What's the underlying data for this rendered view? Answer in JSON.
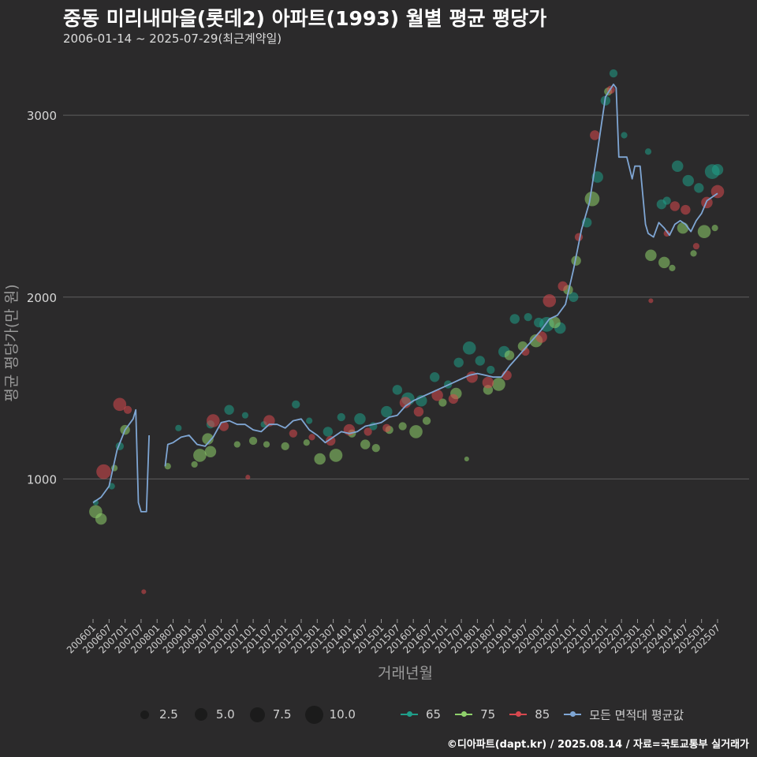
{
  "title": "중동 미리내마을(롯데2) 아파트(1993) 월별 평균 평당가",
  "subtitle": "2006-01-14 ~ 2025-07-29(최근계약일)",
  "caption": "©디아파트(dapt.kr) / 2025.08.14 / 자료=국토교통부 실거래가",
  "colors": {
    "background": "#2b2a2b",
    "grid": "#5e5e5e",
    "area_65": "#1f9e89",
    "area_75": "#8fd16b",
    "area_85": "#d8484f",
    "average_line": "#7fa6d4"
  },
  "chart_data": {
    "type": "scatter",
    "title": "",
    "xlabel": "거래년월",
    "ylabel": "평균 평당가(만 원)",
    "ylim": [
      230,
      3330
    ],
    "yticks": [
      1000,
      2000,
      3000
    ],
    "x_tick_labels": [
      "200601",
      "200607",
      "200701",
      "200707",
      "200801",
      "200807",
      "200901",
      "200907",
      "201001",
      "201007",
      "201101",
      "201107",
      "201201",
      "201207",
      "201301",
      "201307",
      "201401",
      "201407",
      "201501",
      "201507",
      "201601",
      "201607",
      "201701",
      "201707",
      "201801",
      "201807",
      "201901",
      "201907",
      "202001",
      "202007",
      "202101",
      "202107",
      "202201",
      "202207",
      "202301",
      "202307",
      "202401",
      "202407",
      "202501",
      "202507"
    ],
    "grid": true,
    "size_legend": {
      "title": "",
      "values": [
        "2.5",
        "5.0",
        "7.5",
        "10.0"
      ]
    },
    "color_legend": [
      "65",
      "75",
      "85",
      "모든 면적대 평균값"
    ],
    "legend_position": "bottom",
    "average_line": {
      "name": "모든 면적대 평균값",
      "points": [
        [
          "2006-01",
          870
        ],
        [
          "2006-04",
          900
        ],
        [
          "2006-07",
          960
        ],
        [
          "2006-10",
          1160
        ],
        [
          "2007-01",
          1270
        ],
        [
          "2007-04",
          1330
        ],
        [
          "2007-05",
          1380
        ],
        [
          "2007-06",
          870
        ],
        [
          "2007-07",
          820
        ],
        [
          "2007-08",
          820
        ],
        [
          "2007-09",
          820
        ],
        [
          "2007-10",
          1240
        ],
        [
          "2008-01",
          null
        ],
        [
          "2008-04",
          1070
        ],
        [
          "2008-05",
          1190
        ],
        [
          "2008-07",
          1200
        ],
        [
          "2008-10",
          1230
        ],
        [
          "2009-01",
          1240
        ],
        [
          "2009-04",
          1190
        ],
        [
          "2009-07",
          1180
        ],
        [
          "2009-10",
          1230
        ],
        [
          "2010-01",
          1310
        ],
        [
          "2010-04",
          1320
        ],
        [
          "2010-07",
          1300
        ],
        [
          "2010-10",
          1300
        ],
        [
          "2011-01",
          1270
        ],
        [
          "2011-04",
          1260
        ],
        [
          "2011-07",
          1300
        ],
        [
          "2011-10",
          1300
        ],
        [
          "2012-01",
          1280
        ],
        [
          "2012-04",
          1320
        ],
        [
          "2012-07",
          1330
        ],
        [
          "2012-10",
          1270
        ],
        [
          "2013-01",
          1240
        ],
        [
          "2013-04",
          1200
        ],
        [
          "2013-07",
          1230
        ],
        [
          "2013-10",
          1260
        ],
        [
          "2014-01",
          1250
        ],
        [
          "2014-04",
          1260
        ],
        [
          "2014-07",
          1290
        ],
        [
          "2014-10",
          1300
        ],
        [
          "2015-01",
          1310
        ],
        [
          "2015-04",
          1340
        ],
        [
          "2015-07",
          1350
        ],
        [
          "2015-10",
          1400
        ],
        [
          "2016-01",
          1430
        ],
        [
          "2016-04",
          1450
        ],
        [
          "2016-07",
          1470
        ],
        [
          "2016-10",
          1490
        ],
        [
          "2017-01",
          1510
        ],
        [
          "2017-04",
          1530
        ],
        [
          "2017-07",
          1550
        ],
        [
          "2017-10",
          1570
        ],
        [
          "2018-01",
          1580
        ],
        [
          "2018-04",
          1570
        ],
        [
          "2018-07",
          1560
        ],
        [
          "2018-10",
          1560
        ],
        [
          "2019-01",
          1620
        ],
        [
          "2019-04",
          1670
        ],
        [
          "2019-07",
          1720
        ],
        [
          "2019-10",
          1770
        ],
        [
          "2020-01",
          1820
        ],
        [
          "2020-04",
          1880
        ],
        [
          "2020-07",
          1900
        ],
        [
          "2020-10",
          1960
        ],
        [
          "2021-01",
          2150
        ],
        [
          "2021-04",
          2370
        ],
        [
          "2021-07",
          2520
        ],
        [
          "2021-10",
          2800
        ],
        [
          "2022-01",
          3100
        ],
        [
          "2022-04",
          3170
        ],
        [
          "2022-05",
          3150
        ],
        [
          "2022-06",
          2770
        ],
        [
          "2022-07",
          2770
        ],
        [
          "2022-09",
          2770
        ],
        [
          "2022-11",
          2650
        ],
        [
          "2022-12",
          2720
        ],
        [
          "2023-02",
          2720
        ],
        [
          "2023-04",
          2400
        ],
        [
          "2023-05",
          2350
        ],
        [
          "2023-07",
          2330
        ],
        [
          "2023-09",
          2410
        ],
        [
          "2023-11",
          2380
        ],
        [
          "2024-01",
          2340
        ],
        [
          "2024-03",
          2400
        ],
        [
          "2024-05",
          2420
        ],
        [
          "2024-07",
          2400
        ],
        [
          "2024-09",
          2360
        ],
        [
          "2024-11",
          2420
        ],
        [
          "2025-01",
          2460
        ],
        [
          "2025-03",
          2530
        ],
        [
          "2025-05",
          2550
        ],
        [
          "2025-07",
          2570
        ]
      ]
    },
    "series": [
      {
        "name": "65",
        "points": [
          [
            "2006-02",
            870,
            1.5
          ],
          [
            "2006-08",
            960,
            2
          ],
          [
            "2006-11",
            1180,
            3
          ],
          [
            "2008-09",
            1280,
            2
          ],
          [
            "2009-09",
            1300,
            3
          ],
          [
            "2010-04",
            1380,
            4
          ],
          [
            "2010-10",
            1350,
            2
          ],
          [
            "2011-05",
            1300,
            2
          ],
          [
            "2012-05",
            1410,
            3
          ],
          [
            "2012-10",
            1320,
            2
          ],
          [
            "2013-05",
            1260,
            4
          ],
          [
            "2013-10",
            1340,
            3
          ],
          [
            "2014-05",
            1330,
            5
          ],
          [
            "2014-10",
            1290,
            3
          ],
          [
            "2015-03",
            1370,
            5
          ],
          [
            "2015-07",
            1490,
            4
          ],
          [
            "2015-11",
            1440,
            6
          ],
          [
            "2016-04",
            1430,
            5
          ],
          [
            "2016-09",
            1560,
            4
          ],
          [
            "2017-02",
            1520,
            3
          ],
          [
            "2017-06",
            1640,
            4
          ],
          [
            "2017-10",
            1720,
            6
          ],
          [
            "2018-02",
            1650,
            4
          ],
          [
            "2018-06",
            1600,
            3
          ],
          [
            "2018-11",
            1700,
            5
          ],
          [
            "2019-03",
            1880,
            4
          ],
          [
            "2019-08",
            1890,
            3
          ],
          [
            "2019-12",
            1860,
            4
          ],
          [
            "2020-03",
            1850,
            7
          ],
          [
            "2020-08",
            1830,
            5
          ],
          [
            "2021-01",
            2000,
            4
          ],
          [
            "2021-06",
            2410,
            4
          ],
          [
            "2021-10",
            2660,
            5
          ],
          [
            "2022-01",
            3080,
            4
          ],
          [
            "2022-04",
            3230,
            3
          ],
          [
            "2022-08",
            2890,
            2
          ],
          [
            "2023-05",
            2800,
            2
          ],
          [
            "2023-10",
            2510,
            4
          ],
          [
            "2023-12",
            2530,
            3
          ],
          [
            "2024-04",
            2720,
            5
          ],
          [
            "2024-08",
            2640,
            5
          ],
          [
            "2024-12",
            2600,
            4
          ],
          [
            "2025-05",
            2690,
            7
          ],
          [
            "2025-07",
            2700,
            5
          ]
        ]
      },
      {
        "name": "75",
        "points": [
          [
            "2006-02",
            820,
            6
          ],
          [
            "2006-04",
            780,
            5
          ],
          [
            "2006-09",
            1060,
            2
          ],
          [
            "2007-01",
            1270,
            4
          ],
          [
            "2008-05",
            1070,
            2
          ],
          [
            "2009-03",
            1080,
            2
          ],
          [
            "2009-05",
            1130,
            6
          ],
          [
            "2009-08",
            1220,
            5
          ],
          [
            "2009-09",
            1150,
            5
          ],
          [
            "2010-07",
            1190,
            2
          ],
          [
            "2011-01",
            1210,
            3
          ],
          [
            "2011-06",
            1190,
            2
          ],
          [
            "2012-01",
            1180,
            3
          ],
          [
            "2012-09",
            1200,
            2
          ],
          [
            "2013-02",
            1110,
            5
          ],
          [
            "2013-08",
            1130,
            6
          ],
          [
            "2014-02",
            1250,
            3
          ],
          [
            "2014-07",
            1190,
            4
          ],
          [
            "2014-11",
            1170,
            3
          ],
          [
            "2015-04",
            1270,
            3
          ],
          [
            "2015-09",
            1290,
            3
          ],
          [
            "2016-02",
            1260,
            6
          ],
          [
            "2016-06",
            1320,
            3
          ],
          [
            "2016-12",
            1420,
            3
          ],
          [
            "2017-05",
            1470,
            5
          ],
          [
            "2017-09",
            1110,
            1
          ],
          [
            "2018-05",
            1490,
            4
          ],
          [
            "2018-09",
            1520,
            6
          ],
          [
            "2019-01",
            1680,
            4
          ],
          [
            "2019-06",
            1730,
            4
          ],
          [
            "2019-11",
            1760,
            6
          ],
          [
            "2020-06",
            1860,
            5
          ],
          [
            "2020-11",
            2040,
            4
          ],
          [
            "2021-02",
            2200,
            4
          ],
          [
            "2021-08",
            2540,
            7
          ],
          [
            "2022-02",
            3130,
            3
          ],
          [
            "2023-06",
            2230,
            5
          ],
          [
            "2023-11",
            2190,
            5
          ],
          [
            "2024-02",
            2160,
            2
          ],
          [
            "2024-06",
            2380,
            5
          ],
          [
            "2024-10",
            2240,
            2
          ],
          [
            "2025-02",
            2360,
            6
          ],
          [
            "2025-06",
            2380,
            2
          ]
        ]
      },
      {
        "name": "85",
        "points": [
          [
            "2006-05",
            1040,
            7
          ],
          [
            "2006-11",
            1410,
            6
          ],
          [
            "2007-02",
            1380,
            3
          ],
          [
            "2007-08",
            380,
            1
          ],
          [
            "2009-10",
            1320,
            6
          ],
          [
            "2010-02",
            1290,
            4
          ],
          [
            "2010-11",
            1010,
            1
          ],
          [
            "2011-07",
            1320,
            5
          ],
          [
            "2012-04",
            1250,
            3
          ],
          [
            "2012-11",
            1230,
            2
          ],
          [
            "2013-06",
            1210,
            4
          ],
          [
            "2014-01",
            1270,
            5
          ],
          [
            "2014-08",
            1260,
            3
          ],
          [
            "2015-03",
            1280,
            3
          ],
          [
            "2015-10",
            1420,
            5
          ],
          [
            "2016-03",
            1370,
            4
          ],
          [
            "2016-10",
            1460,
            5
          ],
          [
            "2017-04",
            1440,
            4
          ],
          [
            "2017-11",
            1560,
            5
          ],
          [
            "2018-05",
            1530,
            5
          ],
          [
            "2018-12",
            1570,
            4
          ],
          [
            "2019-07",
            1700,
            3
          ],
          [
            "2020-01",
            1780,
            5
          ],
          [
            "2020-04",
            1980,
            6
          ],
          [
            "2020-09",
            2060,
            4
          ],
          [
            "2021-03",
            2330,
            3
          ],
          [
            "2021-09",
            2890,
            4
          ],
          [
            "2022-03",
            3140,
            3
          ],
          [
            "2023-06",
            1980,
            1
          ],
          [
            "2023-12",
            2350,
            2
          ],
          [
            "2024-03",
            2500,
            4
          ],
          [
            "2024-07",
            2480,
            4
          ],
          [
            "2024-11",
            2280,
            2
          ],
          [
            "2025-03",
            2520,
            5
          ],
          [
            "2025-07",
            2580,
            6
          ]
        ]
      }
    ]
  }
}
